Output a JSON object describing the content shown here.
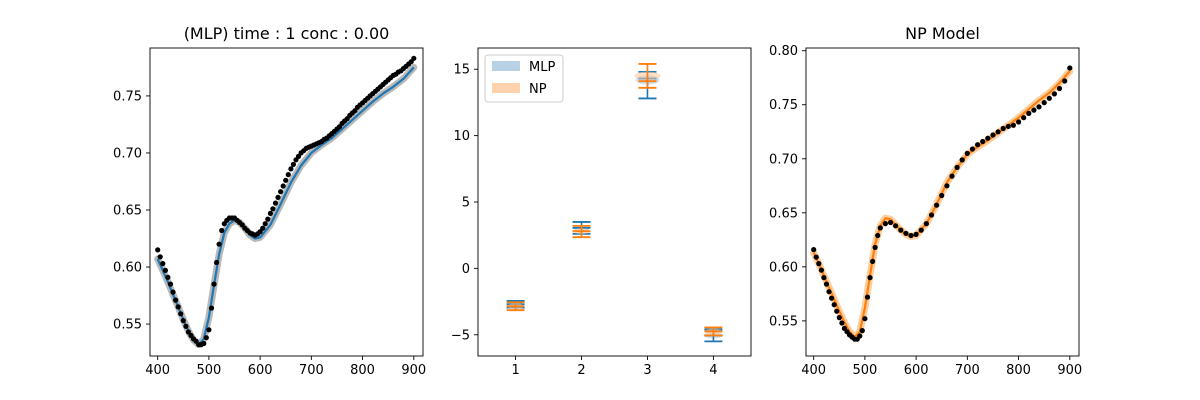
{
  "figure": {
    "panels": [
      "mlp-fit",
      "violins",
      "np-fit"
    ]
  },
  "chart_data": [
    {
      "type": "line",
      "title": "(MLP) time : 1 conc : 0.00",
      "xlabel": "",
      "ylabel": "",
      "xlim": [
        385,
        918
      ],
      "ylim": [
        0.522,
        0.792
      ],
      "xticks": [
        400,
        500,
        600,
        700,
        800,
        900
      ],
      "yticks": [
        0.55,
        0.6,
        0.65,
        0.7,
        0.75
      ],
      "ytick_labels": [
        "0.55",
        "0.60",
        "0.65",
        "0.70",
        "0.75"
      ],
      "line_color": "#1f77b4",
      "band_color": "#7f7f7f",
      "series": [
        {
          "kind": "model-mean",
          "x": [
            400,
            410,
            420,
            430,
            440,
            450,
            460,
            470,
            480,
            490,
            500,
            510,
            520,
            530,
            540,
            550,
            560,
            570,
            580,
            590,
            600,
            620,
            640,
            660,
            680,
            700,
            720,
            740,
            760,
            780,
            800,
            820,
            840,
            860,
            880,
            900
          ],
          "y": [
            0.607,
            0.597,
            0.587,
            0.576,
            0.565,
            0.554,
            0.544,
            0.536,
            0.532,
            0.537,
            0.556,
            0.584,
            0.611,
            0.63,
            0.638,
            0.641,
            0.639,
            0.634,
            0.628,
            0.625,
            0.626,
            0.637,
            0.655,
            0.674,
            0.689,
            0.7,
            0.707,
            0.713,
            0.721,
            0.729,
            0.737,
            0.745,
            0.752,
            0.758,
            0.765,
            0.775
          ]
        },
        {
          "kind": "observed",
          "color": "#000000",
          "x": [
            400,
            405,
            410,
            415,
            420,
            425,
            430,
            435,
            440,
            445,
            450,
            455,
            460,
            465,
            470,
            475,
            480,
            485,
            490,
            495,
            500,
            505,
            510,
            515,
            520,
            525,
            530,
            535,
            540,
            545,
            550,
            555,
            560,
            565,
            570,
            575,
            580,
            585,
            590,
            595,
            600,
            605,
            610,
            615,
            620,
            625,
            630,
            635,
            640,
            645,
            650,
            655,
            660,
            665,
            670,
            675,
            680,
            685,
            690,
            695,
            700,
            705,
            710,
            715,
            720,
            725,
            730,
            735,
            740,
            745,
            750,
            755,
            760,
            765,
            770,
            775,
            780,
            785,
            790,
            795,
            800,
            805,
            810,
            815,
            820,
            825,
            830,
            835,
            840,
            845,
            850,
            855,
            860,
            865,
            870,
            875,
            880,
            885,
            890,
            895,
            900
          ],
          "y": [
            0.615,
            0.609,
            0.603,
            0.597,
            0.591,
            0.585,
            0.578,
            0.571,
            0.565,
            0.559,
            0.553,
            0.548,
            0.543,
            0.54,
            0.537,
            0.535,
            0.532,
            0.532,
            0.533,
            0.538,
            0.545,
            0.564,
            0.585,
            0.604,
            0.62,
            0.632,
            0.638,
            0.641,
            0.643,
            0.643,
            0.643,
            0.641,
            0.639,
            0.637,
            0.634,
            0.632,
            0.63,
            0.629,
            0.628,
            0.629,
            0.631,
            0.634,
            0.638,
            0.642,
            0.647,
            0.651,
            0.656,
            0.661,
            0.666,
            0.671,
            0.676,
            0.681,
            0.686,
            0.69,
            0.694,
            0.697,
            0.7,
            0.702,
            0.704,
            0.705,
            0.706,
            0.707,
            0.708,
            0.709,
            0.71,
            0.712,
            0.713,
            0.715,
            0.717,
            0.719,
            0.721,
            0.723,
            0.726,
            0.728,
            0.73,
            0.733,
            0.735,
            0.737,
            0.74,
            0.742,
            0.744,
            0.746,
            0.748,
            0.75,
            0.752,
            0.754,
            0.756,
            0.758,
            0.76,
            0.762,
            0.764,
            0.766,
            0.768,
            0.769,
            0.771,
            0.772,
            0.774,
            0.776,
            0.778,
            0.78,
            0.783
          ]
        }
      ]
    },
    {
      "type": "violin",
      "title": "",
      "xlabel": "",
      "ylabel": "",
      "xlim": [
        0.43,
        4.57
      ],
      "ylim": [
        -6.6,
        16.6
      ],
      "xticks": [
        1,
        2,
        3,
        4
      ],
      "xtick_labels": [
        "1",
        "2",
        "3",
        "4"
      ],
      "yticks": [
        -5,
        0,
        5,
        10,
        15
      ],
      "ytick_labels": [
        "−5",
        "0",
        "5",
        "10",
        "15"
      ],
      "legend_position": "upper-left",
      "series": [
        {
          "name": "MLP",
          "color": "#1f77b4",
          "fill": "#a6c5df",
          "groups": [
            {
              "position": 1,
              "min": -2.95,
              "max": -2.45,
              "mean": -2.7,
              "median": -2.7,
              "spread": 0.12
            },
            {
              "position": 2,
              "min": 2.6,
              "max": 3.5,
              "mean": 3.05,
              "median": 3.05,
              "spread": 0.13
            },
            {
              "position": 3,
              "min": 12.8,
              "max": 14.8,
              "mean": 14.2,
              "median": 14.3,
              "spread": 0.18
            },
            {
              "position": 4,
              "min": -5.5,
              "max": -4.6,
              "mean": -5.05,
              "median": -5.05,
              "spread": 0.15
            }
          ]
        },
        {
          "name": "NP",
          "color": "#ff7f0e",
          "fill": "#ffc799",
          "groups": [
            {
              "position": 1,
              "min": -3.15,
              "max": -2.55,
              "mean": -2.85,
              "median": -2.85,
              "spread": 0.12
            },
            {
              "position": 2,
              "min": 2.35,
              "max": 3.2,
              "mean": 2.8,
              "median": 2.8,
              "spread": 0.13
            },
            {
              "position": 3,
              "min": 13.6,
              "max": 15.4,
              "mean": 14.5,
              "median": 14.1,
              "spread": 0.2
            },
            {
              "position": 4,
              "min": -5.05,
              "max": -4.45,
              "mean": -4.75,
              "median": -4.75,
              "spread": 0.13
            }
          ]
        }
      ]
    },
    {
      "type": "line",
      "title": "NP Model",
      "xlabel": "",
      "ylabel": "",
      "xlim": [
        385,
        918
      ],
      "ylim": [
        0.5175,
        0.8025
      ],
      "xticks": [
        400,
        500,
        600,
        700,
        800,
        900
      ],
      "yticks": [
        0.55,
        0.6,
        0.65,
        0.7,
        0.75,
        0.8
      ],
      "ytick_labels": [
        "0.55",
        "0.60",
        "0.65",
        "0.70",
        "0.75",
        "0.80"
      ],
      "line_color": "#ff7f0e",
      "band_color": "#ffa64d",
      "series": [
        {
          "kind": "model-mean",
          "x": [
            400,
            410,
            420,
            430,
            440,
            450,
            460,
            470,
            480,
            490,
            500,
            510,
            520,
            530,
            540,
            550,
            560,
            570,
            580,
            590,
            600,
            620,
            640,
            660,
            680,
            700,
            720,
            740,
            760,
            780,
            800,
            820,
            840,
            860,
            880,
            900
          ],
          "y": [
            0.613,
            0.603,
            0.592,
            0.581,
            0.57,
            0.559,
            0.549,
            0.54,
            0.535,
            0.54,
            0.562,
            0.592,
            0.621,
            0.638,
            0.645,
            0.644,
            0.639,
            0.634,
            0.63,
            0.628,
            0.629,
            0.64,
            0.658,
            0.678,
            0.692,
            0.704,
            0.711,
            0.717,
            0.724,
            0.731,
            0.738,
            0.746,
            0.754,
            0.761,
            0.77,
            0.781
          ]
        },
        {
          "kind": "observed",
          "color": "#000000",
          "x": [
            400,
            405,
            410,
            415,
            420,
            425,
            430,
            435,
            440,
            445,
            450,
            455,
            460,
            465,
            470,
            475,
            480,
            485,
            490,
            495,
            500,
            505,
            510,
            515,
            520,
            525,
            530,
            540,
            550,
            560,
            570,
            580,
            590,
            600,
            610,
            620,
            630,
            640,
            650,
            660,
            670,
            680,
            690,
            700,
            710,
            720,
            730,
            740,
            750,
            760,
            770,
            780,
            790,
            800,
            810,
            820,
            830,
            840,
            850,
            860,
            870,
            880,
            890,
            900
          ],
          "y": [
            0.616,
            0.609,
            0.603,
            0.597,
            0.59,
            0.584,
            0.577,
            0.571,
            0.565,
            0.559,
            0.553,
            0.548,
            0.543,
            0.54,
            0.537,
            0.535,
            0.533,
            0.533,
            0.536,
            0.541,
            0.552,
            0.572,
            0.59,
            0.605,
            0.618,
            0.629,
            0.636,
            0.64,
            0.641,
            0.638,
            0.634,
            0.631,
            0.629,
            0.63,
            0.634,
            0.64,
            0.648,
            0.657,
            0.666,
            0.675,
            0.684,
            0.692,
            0.699,
            0.705,
            0.709,
            0.713,
            0.716,
            0.719,
            0.722,
            0.725,
            0.728,
            0.73,
            0.731,
            0.734,
            0.738,
            0.742,
            0.745,
            0.748,
            0.752,
            0.756,
            0.76,
            0.765,
            0.772,
            0.784
          ]
        }
      ]
    }
  ]
}
